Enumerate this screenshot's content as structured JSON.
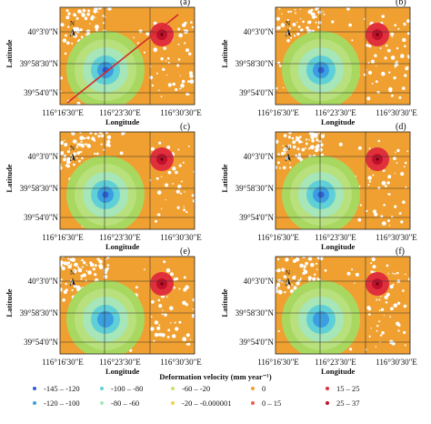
{
  "panels": [
    {
      "label": "(a)",
      "profile_line": true,
      "center_dot": true
    },
    {
      "label": "(b)",
      "profile_line": false,
      "center_dot": true
    },
    {
      "label": "(c)",
      "profile_line": false,
      "center_dot": true
    },
    {
      "label": "(d)",
      "profile_line": false,
      "center_dot": true
    },
    {
      "label": "(e)",
      "profile_line": false,
      "center_dot": false
    },
    {
      "label": "(f)",
      "profile_line": false,
      "center_dot": false
    }
  ],
  "axes": {
    "lat_ticks": [
      "40°3'0\"N",
      "39°58'30\"N",
      "39°54'0\"N"
    ],
    "lon_ticks": [
      "116°16'30\"E",
      "116°23'30\"E",
      "116°30'30\"E"
    ],
    "ylabel": "Latitude",
    "xlabel": "Longitude",
    "north": "N"
  },
  "legend": {
    "title": "Deformation velocity (mm year⁻¹)",
    "items": [
      {
        "label": "-145 – -120",
        "color": "#2d5fd6"
      },
      {
        "label": "-100 – -80",
        "color": "#5fd0d8"
      },
      {
        "label": "-60 – -20",
        "color": "#c7e56a"
      },
      {
        "label": "0",
        "color": "#f0a030"
      },
      {
        "label": "15 – 25",
        "color": "#e0303c"
      },
      {
        "label": "-120 – -100",
        "color": "#3a9ee0"
      },
      {
        "label": "-80 – -60",
        "color": "#a6e6b8"
      },
      {
        "label": "-20 – -0.000001",
        "color": "#f2d24a"
      },
      {
        "label": "0 – 15",
        "color": "#e8604a"
      },
      {
        "label": "25 – 37",
        "color": "#c0102a"
      }
    ]
  },
  "colors": {
    "background": "#f0a030",
    "ring_outer": "#a8d860",
    "ring_2": "#b8e07c",
    "ring_3": "#a6e6b8",
    "ring_4": "#5fd0d8",
    "ring_5": "#3a9ee0",
    "core": "#2d5fd6",
    "uplift_outer": "#e0303c",
    "uplift_core": "#c0102a",
    "profile": "#d42a2a"
  }
}
